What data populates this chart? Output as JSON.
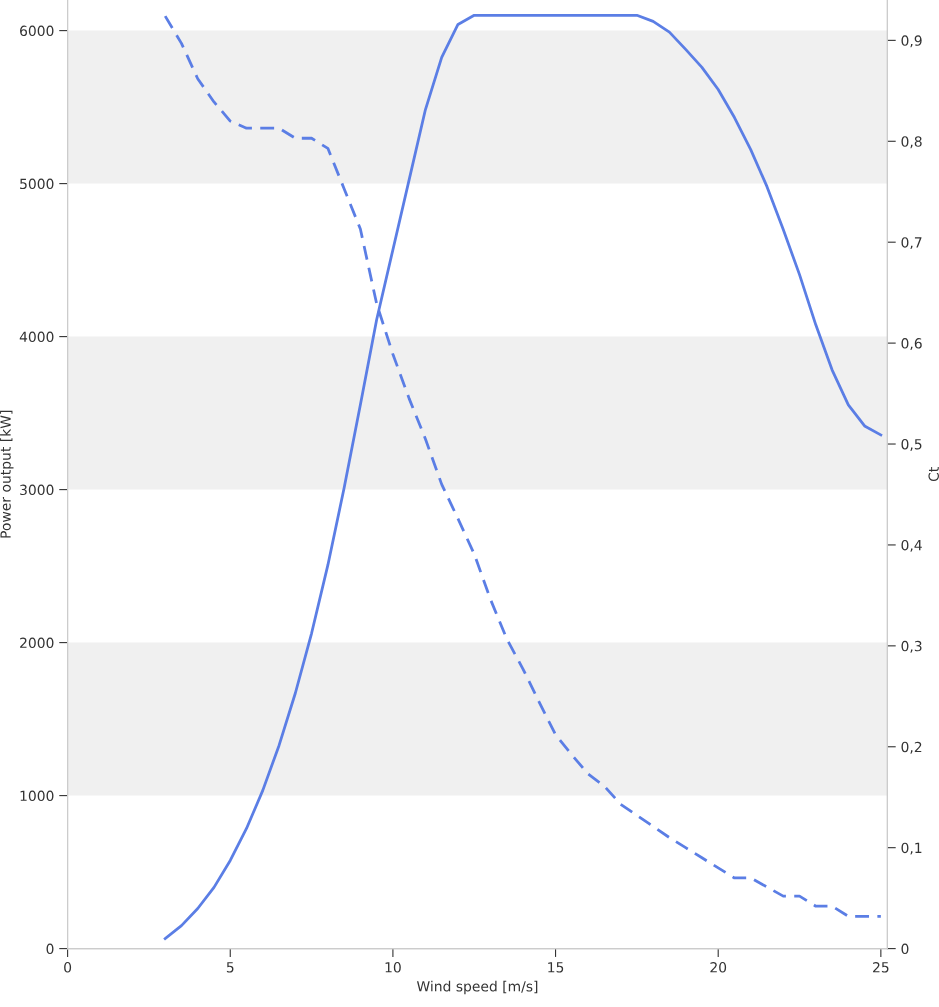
{
  "chart_data": {
    "type": "line",
    "xlabel": "Wind speed [m/s]",
    "ylabel": "Power output [kW]",
    "y2label": "Ct",
    "xlim": [
      0,
      25.2
    ],
    "xticks": [
      0,
      5,
      10,
      15,
      20,
      25
    ],
    "ylim": [
      0,
      6200
    ],
    "yticks": [
      0,
      1000,
      2000,
      3000,
      4000,
      5000,
      6000
    ],
    "y2lim": [
      0,
      0.94
    ],
    "y2ticks": [
      {
        "value": 0,
        "label": "0"
      },
      {
        "value": 0.1,
        "label": "0,1"
      },
      {
        "value": 0.2,
        "label": "0,2"
      },
      {
        "value": 0.3,
        "label": "0,3"
      },
      {
        "value": 0.4,
        "label": "0,4"
      },
      {
        "value": 0.5,
        "label": "0,5"
      },
      {
        "value": 0.6,
        "label": "0,6"
      },
      {
        "value": 0.7,
        "label": "0,7"
      },
      {
        "value": 0.8,
        "label": "0,8"
      },
      {
        "value": 0.9,
        "label": "0,9"
      }
    ],
    "x": [
      3,
      3.5,
      4,
      4.5,
      5,
      5.5,
      6,
      6.5,
      7,
      7.5,
      8,
      8.5,
      9,
      9.5,
      10,
      10.5,
      11,
      11.5,
      12,
      12.5,
      13,
      13.5,
      14,
      14.5,
      15,
      15.5,
      16,
      16.5,
      17,
      17.5,
      18,
      18.5,
      19,
      19.5,
      20,
      20.5,
      21,
      21.5,
      22,
      22.5,
      23,
      23.5,
      24,
      24.5,
      25
    ],
    "bands": [
      {
        "axis": "y",
        "from": 1000,
        "to": 2000,
        "color": "#f0f0f0"
      },
      {
        "axis": "y",
        "from": 3000,
        "to": 4000,
        "color": "#f0f0f0"
      },
      {
        "axis": "y",
        "from": 5000,
        "to": 6000,
        "color": "#f0f0f0"
      }
    ],
    "series": [
      {
        "color": "#5b7ee5",
        "line_style": "solid",
        "values": [
          65,
          150,
          262,
          400,
          576,
          785,
          1034,
          1328,
          1669,
          2061,
          2506,
          3010,
          3554,
          4110,
          4568,
          5026,
          5484,
          5825,
          6040,
          6100,
          6100,
          6100,
          6100,
          6100,
          6100,
          6100,
          6100,
          6100,
          6100,
          6100,
          6060,
          5990,
          5877,
          5760,
          5615,
          5432,
          5222,
          4980,
          4700,
          4405,
          4077,
          3783,
          3554,
          3416,
          3357
        ]
      },
      {
        "color": "#5b7ee5",
        "line_style": "dashed",
        "axis": "y2",
        "values": [
          0.924,
          0.897,
          0.862,
          0.839,
          0.82,
          0.813,
          0.813,
          0.813,
          0.803,
          0.803,
          0.793,
          0.753,
          0.713,
          0.639,
          0.589,
          0.545,
          0.505,
          0.46,
          0.426,
          0.391,
          0.346,
          0.307,
          0.277,
          0.244,
          0.212,
          0.192,
          0.173,
          0.161,
          0.143,
          0.132,
          0.121,
          0.11,
          0.1,
          0.09,
          0.08,
          0.07,
          0.07,
          0.061,
          0.052,
          0.052,
          0.042,
          0.042,
          0.032,
          0.032,
          0.032
        ]
      }
    ],
    "grid": false,
    "legend": false
  }
}
